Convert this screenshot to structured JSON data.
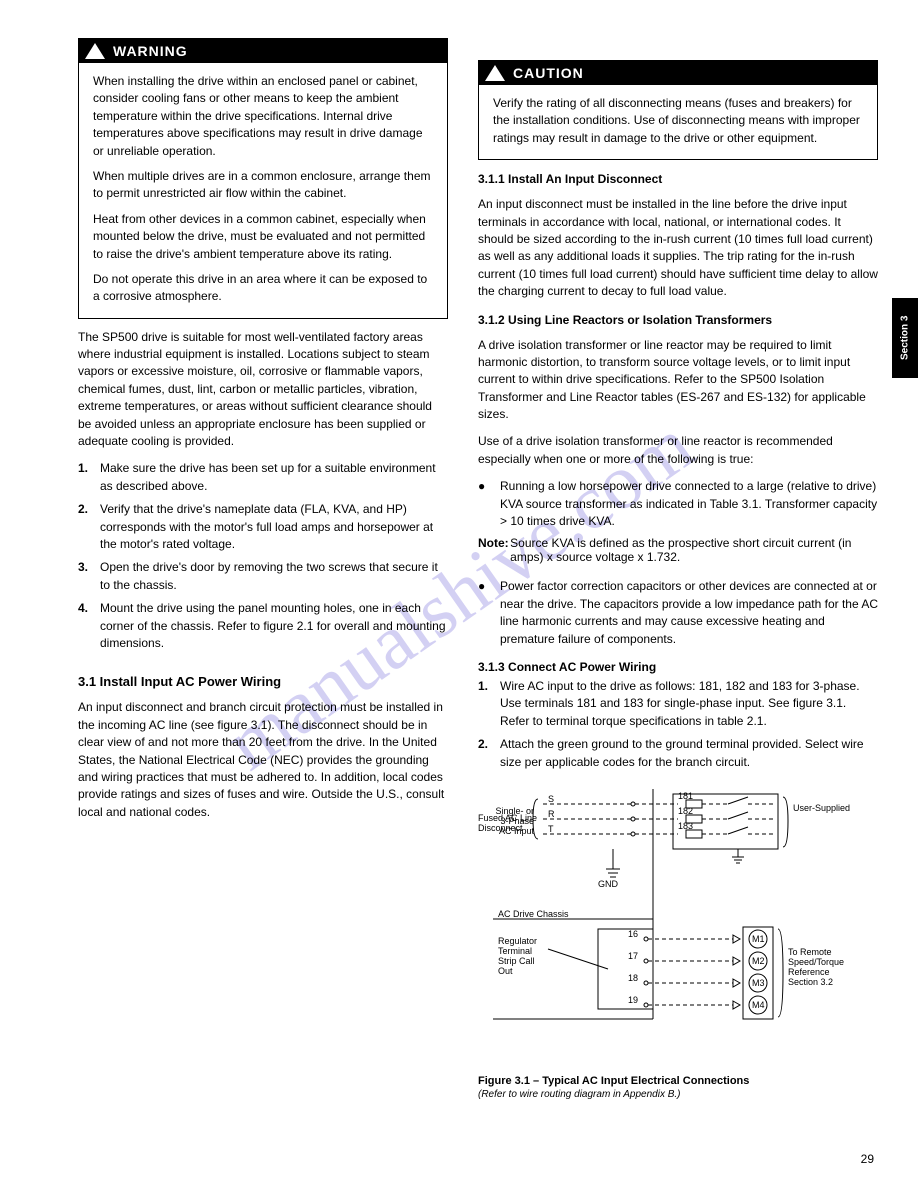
{
  "watermark": "manualshive.com",
  "tab_label": "Section 3",
  "page_number": "29",
  "left": {
    "warning_label": "WARNING",
    "warn_p1": "When installing the drive within an enclosed panel or cabinet, consider cooling fans or other means to keep the ambient temperature within the drive specifications. Internal drive temperatures above specifications may result in drive damage or unreliable operation.",
    "warn_p2": "When multiple drives are in a common enclosure, arrange them to permit unrestricted air flow within the cabinet.",
    "warn_p3": "Heat from other devices in a common cabinet, especially when mounted below the drive, must be evaluated and not permitted to raise the drive's ambient temperature above its rating.",
    "warn_p4": "Do not operate this drive in an area where it can be exposed to a corrosive atmosphere.",
    "body1": "The SP500 drive is suitable for most well-ventilated factory areas where industrial equipment is installed. Locations subject to steam vapors or excessive moisture, oil, corrosive or flammable vapors, chemical fumes, dust, lint, carbon or metallic particles, vibration, extreme temperatures, or areas without sufficient clearance should be avoided unless an appropriate enclosure has been supplied or adequate cooling is provided.",
    "step1_num": "1.",
    "step1": "Make sure the drive has been set up for a suitable environment as described above.",
    "step2_num": "2.",
    "step2": "Verify that the drive's nameplate data (FLA, KVA, and HP) corresponds with the motor's full load amps and horsepower at the motor's rated voltage.",
    "step3_num": "3.",
    "step3": "Open the drive's door by removing the two screws that secure it to the chassis.",
    "step4_num": "4.",
    "step4": "Mount the drive using the panel mounting holes, one in each corner of the chassis. Refer to figure 2.1 for overall and mounting dimensions.",
    "sec31": "3.1 Install Input AC Power Wiring",
    "body2": "An input disconnect and branch circuit protection must be installed in the incoming AC line (see figure 3.1). The disconnect should be in clear view of and not more than 20 feet from the drive. In the United States, the National Electrical Code (NEC) provides the grounding and wiring practices that must be adhered to. In addition, local codes provide ratings and sizes of fuses and wire. Outside the U.S., consult local and national codes."
  },
  "right": {
    "caution_label": "CAUTION",
    "caut_p1": "Verify the rating of all disconnecting means (fuses and breakers) for the installation conditions. Use of disconnecting means with improper ratings may result in damage to the drive or other equipment.",
    "s311": "3.1.1 Install An Input Disconnect",
    "p311": "An input disconnect must be installed in the line before the drive input terminals in accordance with local, national, or international codes. It should be sized according to the in-rush current (10 times full load current) as well as any additional loads it supplies. The trip rating for the in-rush current (10 times full load current) should have sufficient time delay to allow the charging current to decay to full load value.",
    "s312": "3.1.2 Using Line Reactors or Isolation Transformers",
    "p312a": "A drive isolation transformer or line reactor may be required to limit harmonic distortion, to transform source voltage levels, or to limit input current to within drive specifications. Refer to the SP500 Isolation Transformer and Line Reactor tables (ES-267 and ES-132) for applicable sizes.",
    "p312b": "Use of a drive isolation transformer or line reactor is recommended especially when one or more of the following is true:",
    "b1": "●",
    "b1t": "Running a low horsepower drive connected to a large (relative to drive) KVA source transformer as indicated in Table 3.1. Transformer capacity > 10 times drive KVA.",
    "note_n": "Note:",
    "note_t": "Source KVA is defined as the prospective short circuit current (in amps) x source voltage x 1.732.",
    "b2": "●",
    "b2t": "Power factor correction capacitors or other devices are connected at or near the drive. The capacitors provide a low impedance path for the AC line harmonic currents and may cause excessive heating and premature failure of components.",
    "s313": "3.1.3 Connect AC Power Wiring",
    "step1_num": "1.",
    "step1": "Wire AC input to the drive as follows: 181, 182 and 183 for 3-phase. Use terminals 181 and 183 for single-phase input. See figure 3.1. Refer to terminal torque specifications in table 2.1.",
    "step2_num": "2.",
    "step2": "Attach the green ground to the ground terminal provided. Select wire size per applicable codes for the branch circuit.",
    "diagram": {
      "top_left_label": "Single- or\n3-Phase\nAC Input",
      "top_lines": [
        "S",
        "R",
        "T"
      ],
      "top_right_label": "User-Supplied\nFused AC Line\nDisconnect",
      "fuse_terms": [
        "181",
        "182",
        "183"
      ],
      "gnd": "GND",
      "chassis_label": "AC Drive Chassis",
      "panel_label": "Regulator\nTerminal\nStrip Call\nOut",
      "regulator_terms": [
        "16",
        "17",
        "18",
        "19"
      ],
      "motor_terms": [
        "M1",
        "M2",
        "M3",
        "M4"
      ],
      "motor_label": "To Remote\nSpeed/Torque\nReference\nSection 3.2",
      "fig_cap": "Figure 3.1 – Typical AC Input Electrical Connections",
      "fig_sub": "(Refer to wire routing diagram in Appendix B.)"
    }
  },
  "colors": {
    "bg": "#ffffff",
    "black": "#000000",
    "wm": "rgba(130,120,220,0.35)"
  }
}
